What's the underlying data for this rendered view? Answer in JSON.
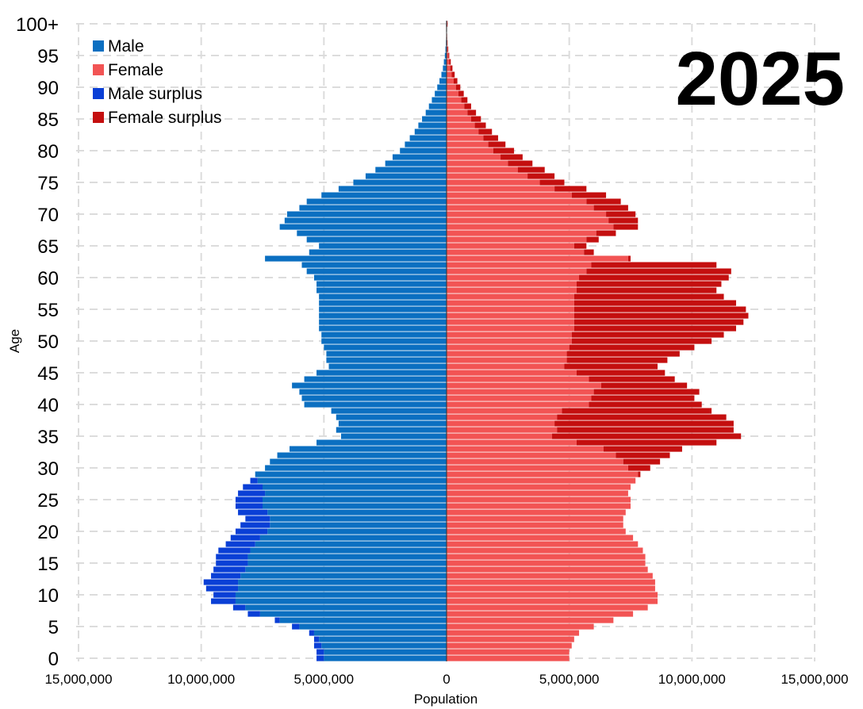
{
  "chart_data": {
    "type": "bar",
    "subtype": "population-pyramid",
    "title": "2025",
    "xlabel": "Population",
    "ylabel": "Age",
    "xlim": [
      -15000000,
      15000000
    ],
    "x_ticks": [
      -15000000,
      -10000000,
      -5000000,
      0,
      5000000,
      10000000,
      15000000
    ],
    "x_tick_labels": [
      "15,000,000",
      "10,000,000",
      "5,000,000",
      "0",
      "5,000,000",
      "10,000,000",
      "15,000,000"
    ],
    "y_ticks": [
      0,
      5,
      10,
      15,
      20,
      25,
      30,
      35,
      40,
      45,
      50,
      55,
      60,
      65,
      70,
      75,
      80,
      85,
      90,
      95,
      100
    ],
    "y_tick_labels": [
      "0",
      "5",
      "10",
      "15",
      "20",
      "25",
      "30",
      "35",
      "40",
      "45",
      "50",
      "55",
      "60",
      "65",
      "70",
      "75",
      "80",
      "85",
      "90",
      "95",
      "100+"
    ],
    "grid": true,
    "legend_position": "top-left",
    "colors": {
      "male": "#0b6fc1",
      "female": "#f25454",
      "male_surplus": "#0a3fd6",
      "female_surplus": "#c40f0f"
    },
    "ages": [
      0,
      1,
      2,
      3,
      4,
      5,
      6,
      7,
      8,
      9,
      10,
      11,
      12,
      13,
      14,
      15,
      16,
      17,
      18,
      19,
      20,
      21,
      22,
      23,
      24,
      25,
      26,
      27,
      28,
      29,
      30,
      31,
      32,
      33,
      34,
      35,
      36,
      37,
      38,
      39,
      40,
      41,
      42,
      43,
      44,
      45,
      46,
      47,
      48,
      49,
      50,
      51,
      52,
      53,
      54,
      55,
      56,
      57,
      58,
      59,
      60,
      61,
      62,
      63,
      64,
      65,
      66,
      67,
      68,
      69,
      70,
      71,
      72,
      73,
      74,
      75,
      76,
      77,
      78,
      79,
      80,
      81,
      82,
      83,
      84,
      85,
      86,
      87,
      88,
      89,
      90,
      91,
      92,
      93,
      94,
      95,
      96,
      97,
      98,
      99,
      100
    ],
    "series": [
      {
        "name": "Male",
        "values": [
          5300000,
          5300000,
          5400000,
          5400000,
          5600000,
          6300000,
          7000000,
          8100000,
          8700000,
          9600000,
          9500000,
          9800000,
          9900000,
          9600000,
          9500000,
          9400000,
          9400000,
          9300000,
          9000000,
          8800000,
          8600000,
          8400000,
          8200000,
          8500000,
          8600000,
          8600000,
          8500000,
          8300000,
          8000000,
          7800000,
          7400000,
          7200000,
          6900000,
          6400000,
          5300000,
          4300000,
          4500000,
          4400000,
          4500000,
          4700000,
          5800000,
          5900000,
          6000000,
          6300000,
          5800000,
          5300000,
          4800000,
          4900000,
          4900000,
          5000000,
          5100000,
          5100000,
          5200000,
          5200000,
          5200000,
          5200000,
          5200000,
          5200000,
          5300000,
          5300000,
          5400000,
          5700000,
          5900000,
          7400000,
          5600000,
          5200000,
          5700000,
          6100000,
          6800000,
          6600000,
          6500000,
          6000000,
          5700000,
          5100000,
          4400000,
          3800000,
          3300000,
          2900000,
          2500000,
          2200000,
          1900000,
          1700000,
          1500000,
          1300000,
          1150000,
          1000000,
          850000,
          720000,
          600000,
          480000,
          380000,
          290000,
          210000,
          150000,
          110000,
          70000,
          45000,
          25000,
          15000,
          8000,
          20000
        ]
      },
      {
        "name": "Female",
        "values": [
          5000000,
          5000000,
          5100000,
          5200000,
          5400000,
          6000000,
          6800000,
          7600000,
          8200000,
          8600000,
          8600000,
          8500000,
          8500000,
          8400000,
          8200000,
          8100000,
          8100000,
          8000000,
          7800000,
          7600000,
          7300000,
          7200000,
          7200000,
          7300000,
          7500000,
          7500000,
          7400000,
          7500000,
          7700000,
          7900000,
          8300000,
          8700000,
          9100000,
          9600000,
          11000000,
          12000000,
          11700000,
          11700000,
          11400000,
          10800000,
          10400000,
          10100000,
          10300000,
          9800000,
          9300000,
          8900000,
          8600000,
          9000000,
          9500000,
          10100000,
          10800000,
          11300000,
          11800000,
          12100000,
          12300000,
          12200000,
          11800000,
          11300000,
          11000000,
          11200000,
          11500000,
          11600000,
          11000000,
          7500000,
          6000000,
          5700000,
          6200000,
          6900000,
          7800000,
          7800000,
          7700000,
          7400000,
          7100000,
          6500000,
          5700000,
          4800000,
          4400000,
          4000000,
          3500000,
          3100000,
          2750000,
          2400000,
          2100000,
          1850000,
          1600000,
          1400000,
          1200000,
          1000000,
          850000,
          700000,
          560000,
          440000,
          330000,
          240000,
          170000,
          110000,
          70000,
          40000,
          22000,
          12000,
          40000
        ]
      }
    ],
    "legend": [
      "Male",
      "Female",
      "Male surplus",
      "Female surplus"
    ]
  }
}
